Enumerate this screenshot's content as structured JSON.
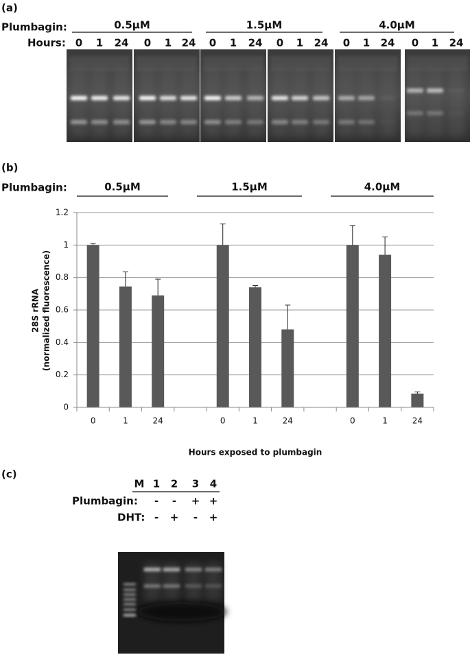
{
  "panel_a": {
    "panel_label": "(a)",
    "row_labels": [
      "Plumbagin:",
      "Hours:"
    ],
    "concentrations": [
      "0.5μM",
      "1.5μM",
      "4.0μM"
    ],
    "hours": [
      "0",
      "1",
      "24",
      "0",
      "1",
      "24",
      "0",
      "1",
      "24",
      "0",
      "1",
      "24",
      "0",
      "1",
      "24",
      "0",
      "1",
      "24"
    ]
  },
  "chart_data": {
    "type": "bar",
    "panel_label": "(b)",
    "group_row_label": "Plumbagin:",
    "groups": [
      "0.5μM",
      "1.5μM",
      "4.0μM"
    ],
    "y_label": [
      "28S rRNA",
      "(normalized fluorescence)"
    ],
    "x_label": "Hours exposed to plumbagin",
    "categories": [
      "0",
      "1",
      "24",
      null,
      "0",
      "1",
      "24",
      null,
      "0",
      "1",
      "24"
    ],
    "values": [
      1.0,
      0.745,
      0.69,
      null,
      1.0,
      0.74,
      0.48,
      null,
      1.0,
      0.94,
      0.085
    ],
    "errors": [
      0.01,
      0.09,
      0.1,
      null,
      0.13,
      0.01,
      0.15,
      null,
      0.12,
      0.11,
      0.01
    ],
    "color": "#595959",
    "ylim": [
      0,
      1.2
    ],
    "yticks": [
      0,
      0.2,
      0.4,
      0.6,
      0.8,
      1,
      1.2
    ],
    "grid": true
  },
  "panel_c": {
    "panel_label": "(c)",
    "lanes": [
      "M",
      "1",
      "2",
      "3",
      "4"
    ],
    "rows": [
      {
        "label": "Plumbagin:",
        "marks": [
          "-",
          "-",
          "+",
          "+"
        ]
      },
      {
        "label": "DHT:",
        "marks": [
          "-",
          "+",
          "-",
          "+"
        ]
      }
    ]
  }
}
